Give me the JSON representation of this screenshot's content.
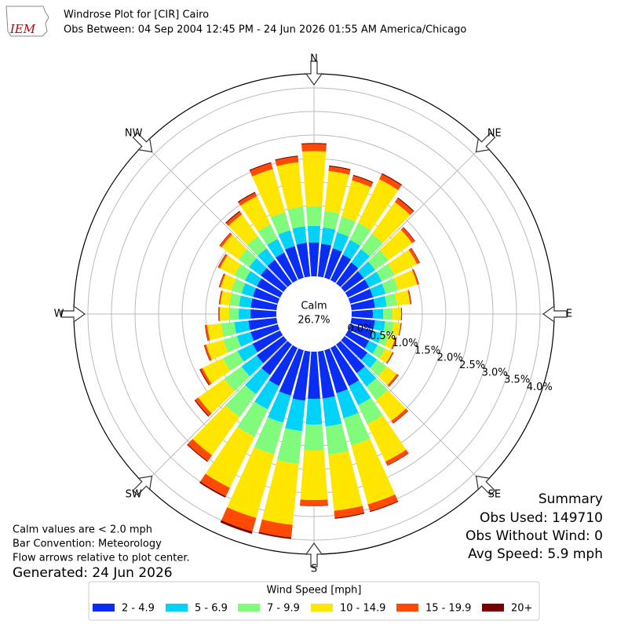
{
  "header": {
    "title": "Windrose Plot for [CIR] Cairo",
    "subtitle": "Obs Between: 04 Sep 2004 12:45 PM - 24 Jun 2026 01:55 AM America/Chicago"
  },
  "logo": "IEM",
  "chart_data": {
    "type": "windrose",
    "directions": [
      10,
      20,
      30,
      40,
      50,
      60,
      70,
      80,
      90,
      100,
      110,
      120,
      130,
      140,
      150,
      160,
      170,
      180,
      190,
      200,
      210,
      220,
      230,
      240,
      250,
      260,
      270,
      280,
      290,
      300,
      310,
      320,
      330,
      340,
      350,
      360
    ],
    "compass_labels": [
      "N",
      "NE",
      "E",
      "SE",
      "S",
      "SW",
      "W",
      "NW"
    ],
    "calm": {
      "label": "Calm",
      "value": 26.7,
      "value_label": "26.7%"
    },
    "rlim": [
      0,
      4.3
    ],
    "rticks": [
      {
        "value": 0,
        "label": "0.0%"
      },
      {
        "value": 0.5,
        "label": "0.5%"
      },
      {
        "value": 1,
        "label": "1.0%"
      },
      {
        "value": 1.5,
        "label": "1.5%"
      },
      {
        "value": 2,
        "label": "2.0%"
      },
      {
        "value": 2.5,
        "label": "2.5%"
      },
      {
        "value": 3,
        "label": "3.0%"
      },
      {
        "value": 3.5,
        "label": "3.5%"
      },
      {
        "value": 4,
        "label": "4.0%"
      }
    ],
    "legend_title": "Wind Speed [mph]",
    "series": [
      {
        "name": "2 - 4.9",
        "color": "#0a2df5",
        "values": [
          0.7,
          0.65,
          0.6,
          0.55,
          0.5,
          0.5,
          0.5,
          0.5,
          0.45,
          0.5,
          0.5,
          0.5,
          0.6,
          0.75,
          0.9,
          0.95,
          1.0,
          1.0,
          1.05,
          1.0,
          0.9,
          0.8,
          0.7,
          0.65,
          0.6,
          0.6,
          0.55,
          0.55,
          0.55,
          0.55,
          0.6,
          0.62,
          0.65,
          0.7,
          0.72,
          0.72
        ]
      },
      {
        "name": "5 - 6.9",
        "color": "#00d2fa",
        "values": [
          0.35,
          0.35,
          0.35,
          0.35,
          0.3,
          0.3,
          0.28,
          0.25,
          0.22,
          0.22,
          0.2,
          0.2,
          0.25,
          0.35,
          0.45,
          0.55,
          0.6,
          0.55,
          0.65,
          0.6,
          0.55,
          0.5,
          0.4,
          0.35,
          0.3,
          0.3,
          0.25,
          0.25,
          0.25,
          0.28,
          0.3,
          0.3,
          0.32,
          0.35,
          0.35,
          0.35
        ]
      },
      {
        "name": "7 - 9.9",
        "color": "#80fb7c",
        "values": [
          0.35,
          0.35,
          0.4,
          0.4,
          0.35,
          0.3,
          0.28,
          0.22,
          0.2,
          0.18,
          0.15,
          0.18,
          0.25,
          0.35,
          0.45,
          0.6,
          0.6,
          0.55,
          0.7,
          0.7,
          0.65,
          0.6,
          0.45,
          0.35,
          0.3,
          0.28,
          0.2,
          0.2,
          0.22,
          0.25,
          0.28,
          0.32,
          0.35,
          0.4,
          0.42,
          0.42
        ]
      },
      {
        "name": "10 - 14.9",
        "color": "#ffe600",
        "values": [
          0.85,
          0.8,
          1.03,
          0.83,
          0.62,
          0.53,
          0.42,
          0.28,
          0.18,
          0.15,
          0.15,
          0.17,
          0.27,
          0.55,
          0.88,
          1.3,
          1.2,
          1.05,
          1.3,
          1.4,
          1.2,
          1.0,
          0.68,
          0.48,
          0.38,
          0.3,
          0.2,
          0.2,
          0.24,
          0.34,
          0.44,
          0.57,
          0.66,
          0.95,
          0.95,
          1.17
        ]
      },
      {
        "name": "15 - 19.9",
        "color": "#ff4a05",
        "values": [
          0.1,
          0.1,
          0.12,
          0.1,
          0.07,
          0.06,
          0.03,
          0.02,
          0.01,
          0.01,
          0.02,
          0.02,
          0.04,
          0.06,
          0.09,
          0.15,
          0.15,
          0.12,
          0.27,
          0.3,
          0.2,
          0.15,
          0.08,
          0.05,
          0.04,
          0.04,
          0.02,
          0.02,
          0.03,
          0.04,
          0.05,
          0.07,
          0.08,
          0.13,
          0.12,
          0.15
        ]
      },
      {
        "name": "20+",
        "color": "#7a0000",
        "values": [
          0.02,
          0.02,
          0.02,
          0.02,
          0.01,
          0.01,
          0.01,
          0.01,
          0.01,
          0.01,
          0.01,
          0.01,
          0.01,
          0.01,
          0.01,
          0.02,
          0.02,
          0.01,
          0.03,
          0.05,
          0.03,
          0.02,
          0.02,
          0.02,
          0.01,
          0.01,
          0.01,
          0.01,
          0.01,
          0.01,
          0.01,
          0.02,
          0.02,
          0.02,
          0.02,
          0.02
        ]
      }
    ]
  },
  "notes": [
    "Calm values are < 2.0 mph",
    "Bar Convention: Meteorology",
    "Flow arrows relative to plot center."
  ],
  "generated": "Generated: 24 Jun 2026",
  "summary": {
    "title": "Summary",
    "lines": [
      "Obs Used: 149710",
      "Obs Without Wind: 0",
      "Avg Speed: 5.9 mph"
    ]
  }
}
